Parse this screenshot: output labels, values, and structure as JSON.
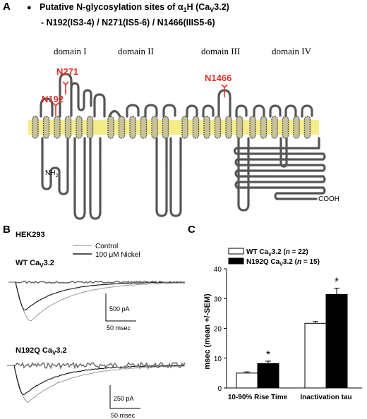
{
  "panel_a": {
    "letter": "A",
    "bullet": "●",
    "title_main": "Putative N-glycosylation sites of α",
    "title_sub1": "1",
    "title_mid": "H (Ca",
    "title_sub2": "V",
    "title_end": "3.2)",
    "subtitle": "- N192(IS3-4) / N271(IS5-6) / N1466(IIIS5-6)",
    "domains": [
      "domain I",
      "domain II",
      "domain III",
      "domain IV"
    ],
    "sites": [
      "N271",
      "N192",
      "N1466"
    ],
    "nh2": "NH",
    "nh2_sub": "2",
    "cooh": "COOH",
    "membrane_color": "#f5ec8a",
    "site_color": "#e0322a",
    "chain_color": "#555555"
  },
  "panel_b": {
    "letter": "B",
    "cell": "HEK293",
    "legend": [
      "Control",
      "100 μM Nickel"
    ],
    "wt_label": "WT Ca",
    "wt_sub": "V",
    "wt_suffix": "3.2",
    "mut_label": "N192Q Ca",
    "mut_sub": "V",
    "mut_suffix": "3.2",
    "scale_wt_current": "500 pA",
    "scale_wt_time": "50 msec",
    "scale_mut_current": "250 pA",
    "scale_mut_time": "50 msec"
  },
  "chart_data": {
    "type": "bar",
    "letter": "C",
    "categories": [
      "10-90% Rise Time",
      "Inactivation tau"
    ],
    "series": [
      {
        "name": "WT Ca_V3.2 (n = 22)",
        "label_pre": "WT Ca",
        "label_sub": "V",
        "label_post": "3.2 (",
        "n_text": "n",
        "n_value": " = 22)",
        "color": "#ffffff",
        "values": [
          5.0,
          21.7
        ],
        "errors": [
          0.4,
          0.6
        ]
      },
      {
        "name": "N192Q Ca_V3.2 (n = 15)",
        "label_pre": "N192Q Ca",
        "label_sub": "V",
        "label_post": "3.2 (",
        "n_text": "n",
        "n_value": " = 15)",
        "color": "#000000",
        "values": [
          8.2,
          31.4
        ],
        "errors": [
          0.8,
          2.1
        ]
      }
    ],
    "ylabel": "msec (mean +/-SEM)",
    "ylim": [
      0,
      40
    ],
    "yticks": [
      "0",
      "10",
      "20",
      "30",
      "40"
    ],
    "significance": [
      "*",
      "*"
    ]
  }
}
